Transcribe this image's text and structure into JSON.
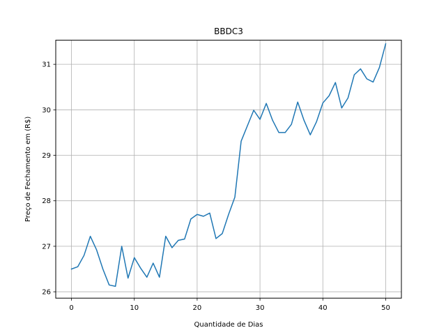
{
  "chart_data": {
    "type": "line",
    "title": "BBDC3",
    "xlabel": "Quantidade de Dias",
    "ylabel": "Preço de Fechamento em (R$)",
    "xlim": [
      -2.5,
      52.5
    ],
    "ylim": [
      25.86,
      31.53
    ],
    "xticks": [
      0,
      10,
      20,
      30,
      40,
      50
    ],
    "yticks": [
      26,
      27,
      28,
      29,
      30,
      31
    ],
    "grid": true,
    "series": [
      {
        "color": "#1f77b4",
        "x": [
          0,
          1,
          2,
          3,
          4,
          5,
          6,
          7,
          8,
          9,
          10,
          11,
          12,
          13,
          14,
          15,
          16,
          17,
          18,
          19,
          20,
          21,
          22,
          23,
          24,
          25,
          26,
          27,
          28,
          29,
          30,
          31,
          32,
          33,
          34,
          35,
          36,
          37,
          38,
          39,
          40,
          41,
          42,
          43,
          44,
          45,
          46,
          47,
          48,
          49,
          50
        ],
        "values": [
          26.5,
          26.55,
          26.8,
          27.22,
          26.92,
          26.5,
          26.15,
          26.12,
          27.0,
          26.3,
          26.75,
          26.52,
          26.32,
          26.63,
          26.32,
          27.22,
          26.97,
          27.13,
          27.16,
          27.6,
          27.7,
          27.66,
          27.73,
          27.17,
          27.28,
          27.7,
          28.08,
          29.31,
          29.65,
          29.99,
          29.79,
          30.14,
          29.77,
          29.5,
          29.5,
          29.68,
          30.17,
          29.77,
          29.45,
          29.74,
          30.15,
          30.31,
          30.6,
          30.04,
          30.26,
          30.77,
          30.9,
          30.68,
          30.61,
          30.93,
          31.45
        ]
      }
    ]
  }
}
